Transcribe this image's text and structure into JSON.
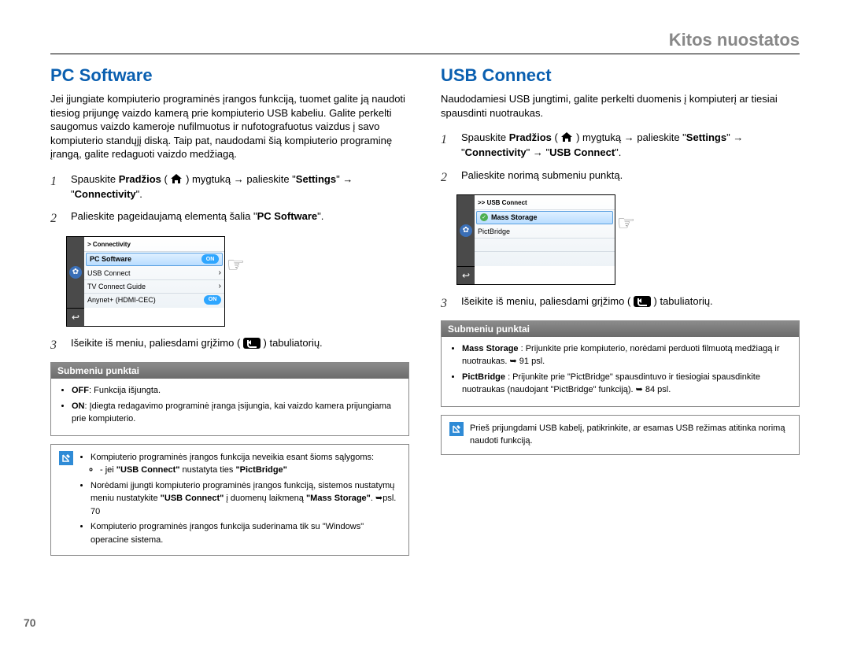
{
  "page_header": "Kitos nuostatos",
  "page_number": "70",
  "divider_color": "#000000",
  "left": {
    "title": "PC Software",
    "title_color": "#0a5fb0",
    "lead": "Jei įjungiate kompiuterio programinės įrangos funkciją, tuomet galite ją naudoti tiesiog prijungę vaizdo kamerą prie kompiuterio USB kabeliu. Galite perkelti saugomus vaizdo kameroje nufilmuotus ir nufotografuotus vaizdus į savo kompiuterio standųjį diską. Taip pat, naudodami šią kompiuterio programinę įrangą, galite redaguoti vaizdo medžiagą.",
    "steps": [
      {
        "n": "1",
        "pre": "Spauskite ",
        "b1": "Pradžios",
        "mid": " ( ",
        "icon": "home",
        "post1": " ) mygtuką → palieskite \"",
        "b2": "Settings",
        "post2": "\" → \"",
        "b3": "Connectivity",
        "post3": "\"."
      },
      {
        "n": "2",
        "pre": "Palieskite pageidaujamą elementą šalia \"",
        "b1": "PC Software",
        "post1": "\"."
      },
      {
        "n": "3",
        "pre": "Išeikite iš meniu, paliesdami grįžimo ( ",
        "icon": "back",
        "post1": " ) tabuliatorių."
      }
    ],
    "device": {
      "crumb": "> Connectivity",
      "rows": [
        {
          "label": "PC Software",
          "toggle": "ON",
          "selected": true
        },
        {
          "label": "USB Connect",
          "chev": true
        },
        {
          "label": "TV Connect Guide",
          "chev": true
        },
        {
          "label": "Anynet+ (HDMI-CEC)",
          "toggle": "ON"
        }
      ]
    },
    "submenu": {
      "title": "Submeniu punktai",
      "items": [
        {
          "b": "OFF",
          "t": ": Funkcija išjungta."
        },
        {
          "b": "ON",
          "t": ": Įdiegta redagavimo programinė įranga įsijungia, kai vaizdo kamera prijungiama prie kompiuterio."
        }
      ]
    },
    "note": {
      "lines": [
        "Kompiuterio programinės įrangos funkcija neveikia esant šioms sąlygoms:",
        "",
        "Norėdami įjungti kompiuterio programinės įrangos funkciją, sistemos nustatymų meniu nustatykite <b>\"USB Connect\"</b> į duomenų laikmeną <b>\"Mass Storage\"</b>. ➥psl. 70",
        "Kompiuterio programinės įrangos funkcija suderinama tik su \"Windows\" operacine sistema."
      ],
      "sub": "-  jei <b>\"USB Connect\"</b> nustatyta ties <b>\"PictBridge\"</b>"
    }
  },
  "right": {
    "title": "USB Connect",
    "title_color": "#0a5fb0",
    "lead": "Naudodamiesi USB jungtimi, galite perkelti duomenis į kompiuterį ar tiesiai spausdinti nuotraukas.",
    "steps": [
      {
        "n": "1",
        "pre": "Spauskite ",
        "b1": "Pradžios",
        "mid": " ( ",
        "icon": "home",
        "post1": " ) mygtuką → palieskite \"",
        "b2": "Settings",
        "post2": "\" → \"",
        "b3": "Connectivity",
        "post3": "\" → \"",
        "b4": "USB Connect",
        "post4": "\"."
      },
      {
        "n": "2",
        "pre": "Palieskite norimą submeniu punktą."
      },
      {
        "n": "3",
        "pre": "Išeikite iš meniu, paliesdami grįžimo ( ",
        "icon": "back",
        "post1": " ) tabuliatorių."
      }
    ],
    "device": {
      "crumb": ">> USB Connect",
      "rows": [
        {
          "label": "Mass Storage",
          "check": true,
          "selected": true
        },
        {
          "label": "PictBridge"
        }
      ],
      "blank_rows": 2
    },
    "submenu": {
      "title": "Submeniu punktai",
      "items": [
        {
          "b": "Mass Storage",
          "t": " : Prijunkite prie kompiuterio, norėdami perduoti filmuotą medžiagą ir nuotraukas. ➥ 91 psl."
        },
        {
          "b": "PictBridge",
          "t": " : Prijunkite prie \"PictBridge\" spausdintuvo ir tiesiogiai spausdinkite nuotraukas (naudojant \"PictBridge\" funkciją). ➥ 84 psl."
        }
      ]
    },
    "note": {
      "text": "Prieš prijungdami USB kabelį, patikrinkite, ar esamas USB režimas atitinka norimą naudoti funkciją."
    }
  }
}
